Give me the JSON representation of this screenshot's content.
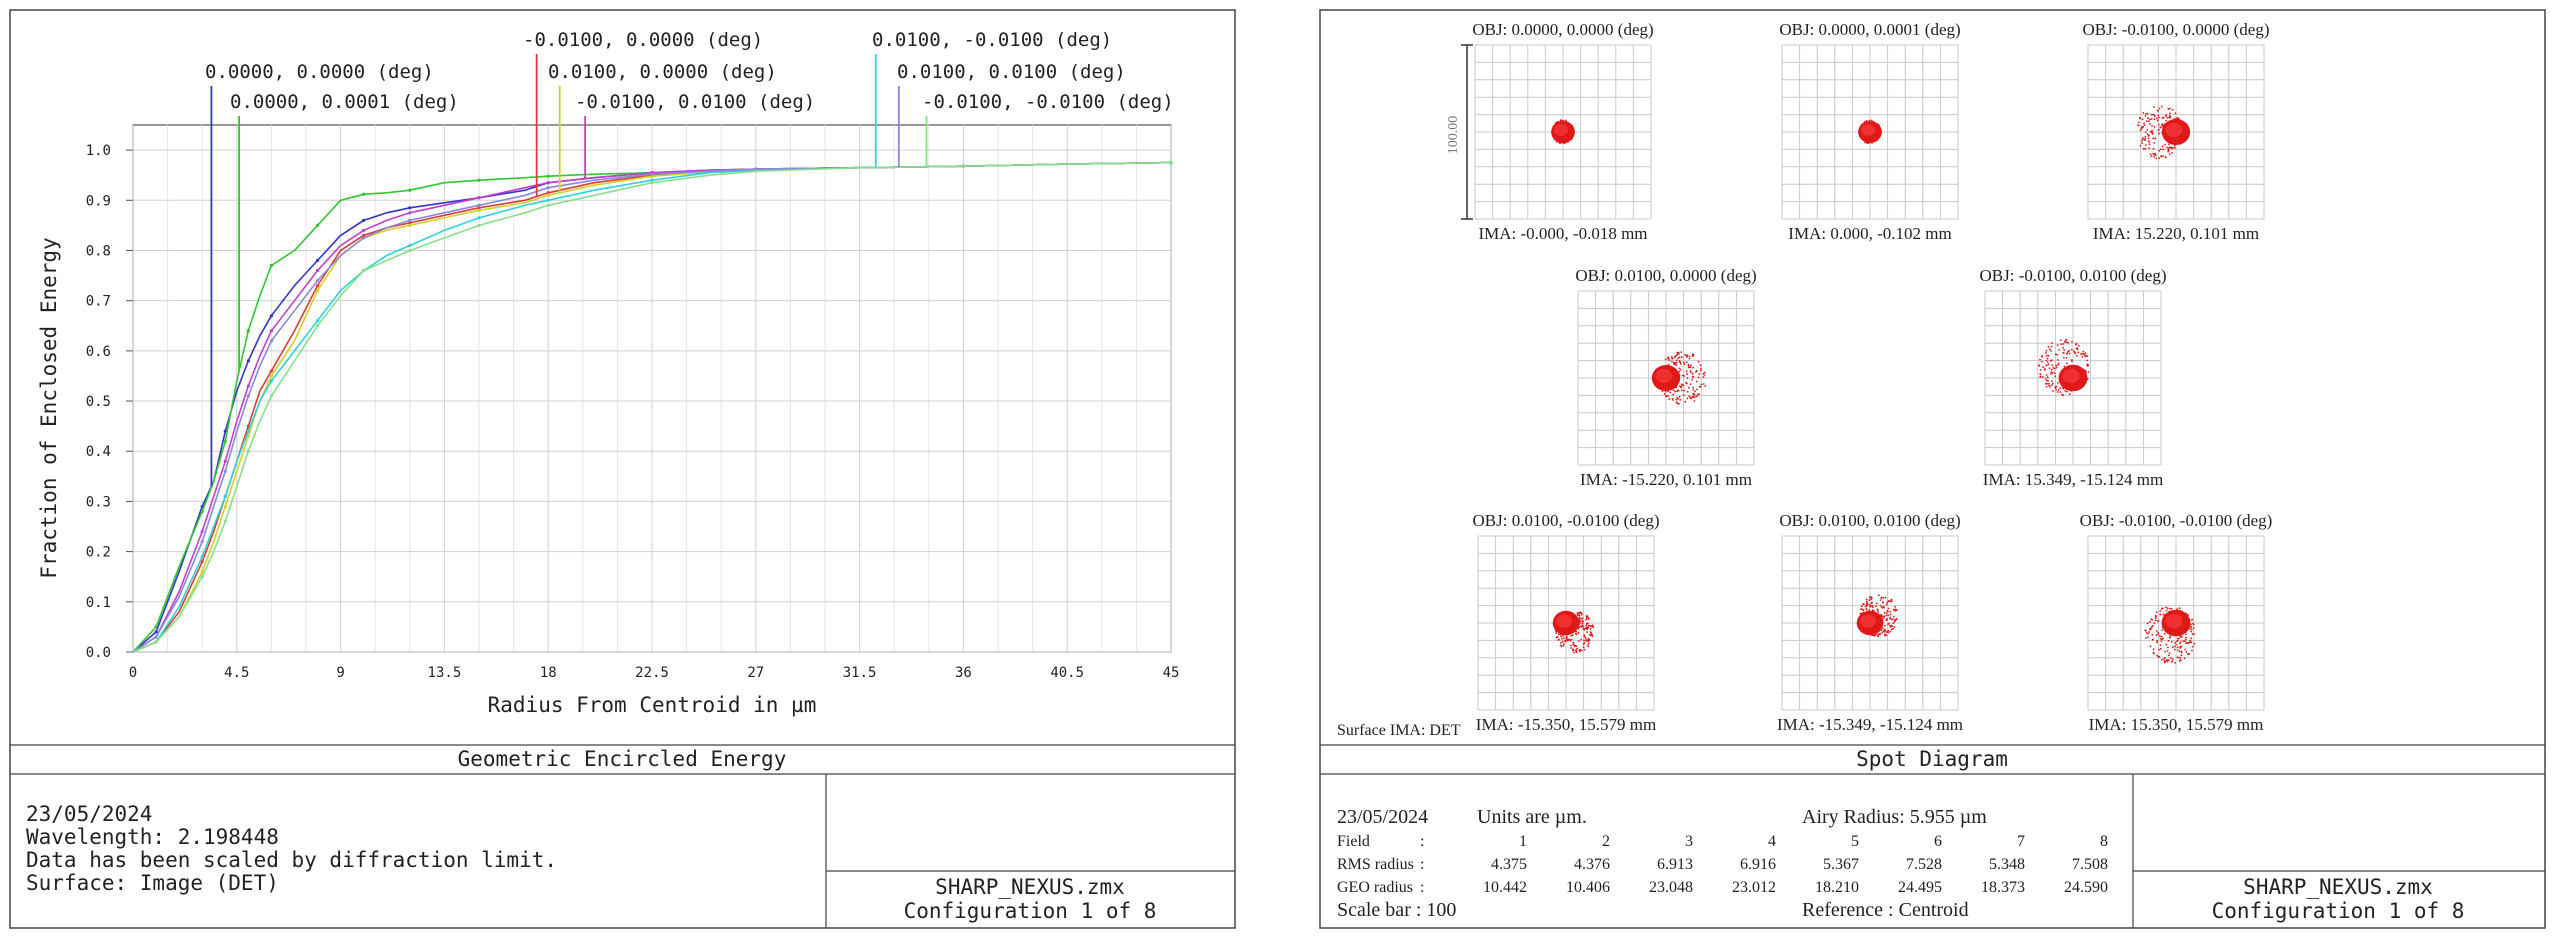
{
  "left_panel": {
    "title": "Geometric Encircled Energy",
    "info_lines": [
      "23/05/2024",
      "Wavelength: 2.198448",
      "Data has been scaled by diffraction limit.",
      "Surface: Image (DET)"
    ],
    "file_name": "SHARP_NEXUS.zmx",
    "configuration": "Configuration 1 of 8"
  },
  "right_panel": {
    "title": "Spot Diagram",
    "date": "23/05/2024",
    "units_text": "Units are µm.",
    "airy_text": "Airy Radius: 5.955 µm",
    "table": {
      "field_label": "Field",
      "rms_label": "RMS radius",
      "geo_label": "GEO radius",
      "fields": [
        "1",
        "2",
        "3",
        "4",
        "5",
        "6",
        "7",
        "8"
      ],
      "rms": [
        "4.375",
        "4.376",
        "6.913",
        "6.916",
        "5.367",
        "7.528",
        "5.348",
        "7.508"
      ],
      "geo": [
        "10.442",
        "10.406",
        "23.048",
        "23.012",
        "18.210",
        "24.495",
        "18.373",
        "24.590"
      ]
    },
    "scale_bar_text": "Scale bar  : 100",
    "reference_text": "Reference  : Centroid",
    "surface_text": "Surface IMA: DET",
    "scale_label": "100.00",
    "file_name": "SHARP_NEXUS.zmx",
    "configuration": "Configuration 1 of 8",
    "spots": [
      {
        "obj": "OBJ: 0.0000, 0.0000 (deg)",
        "ima": "IMA: -0.000, -0.018 mm",
        "geo": 10.442,
        "ox": 0,
        "oy": 0
      },
      {
        "obj": "OBJ: 0.0000, 0.0001 (deg)",
        "ima": "IMA: 0.000, -0.102 mm",
        "geo": 10.406,
        "ox": 0,
        "oy": 0
      },
      {
        "obj": "OBJ: -0.0100, 0.0000 (deg)",
        "ima": "IMA: 15.220, 0.101 mm",
        "geo": 23.048,
        "ox": -1,
        "oy": 0
      },
      {
        "obj": "OBJ: 0.0100, 0.0000 (deg)",
        "ima": "IMA: -15.220, 0.101 mm",
        "geo": 23.012,
        "ox": 1,
        "oy": 0
      },
      {
        "obj": "OBJ: -0.0100, 0.0100 (deg)",
        "ima": "IMA: 15.349, -15.124 mm",
        "geo": 24.495,
        "ox": -0.5,
        "oy": -0.6
      },
      {
        "obj": "OBJ: 0.0100, -0.0100 (deg)",
        "ima": "IMA: -15.350, 15.579 mm",
        "geo": 18.21,
        "ox": 0.6,
        "oy": 0.6
      },
      {
        "obj": "OBJ: 0.0100, 0.0100 (deg)",
        "ima": "IMA: -15.349, -15.124 mm",
        "geo": 18.373,
        "ox": 0.6,
        "oy": -0.5
      },
      {
        "obj": "OBJ: -0.0100, -0.0100 (deg)",
        "ima": "IMA: 15.350, 15.579 mm",
        "geo": 24.59,
        "ox": -0.3,
        "oy": 0.7
      }
    ]
  },
  "chart_data": {
    "type": "line",
    "title": "",
    "xlabel": "Radius From Centroid in µm",
    "ylabel": "Fraction of Enclosed Energy",
    "xlim": [
      0,
      45
    ],
    "ylim": [
      0,
      1.05
    ],
    "xticks": [
      0,
      4.5,
      9,
      13.5,
      18,
      22.5,
      27,
      31.5,
      36,
      40.5,
      45
    ],
    "xtick_labels": [
      "0",
      "4.5",
      "9",
      "13.5",
      "18",
      "22.5",
      "27",
      "31.5",
      "36",
      "40.5",
      "45"
    ],
    "yticks": [
      0,
      0.1,
      0.2,
      0.3,
      0.4,
      0.5,
      0.6,
      0.7,
      0.8,
      0.9,
      1.0
    ],
    "ytick_labels": [
      "0.0",
      "0.1",
      "0.2",
      "0.3",
      "0.4",
      "0.5",
      "0.6",
      "0.7",
      "0.8",
      "0.9",
      "1.0"
    ],
    "grid": true,
    "x": [
      0,
      1,
      2,
      3,
      3.5,
      4,
      4.5,
      5,
      5.5,
      6,
      7,
      8,
      9,
      10,
      11,
      12,
      13.5,
      15,
      17,
      18,
      20,
      22.5,
      25,
      27,
      31.5,
      36,
      40.5,
      45
    ],
    "series": [
      {
        "name": "0.0000, 0.0000 (deg)",
        "color": "#3535c8",
        "marker_x": 3.4,
        "values": [
          0,
          0.04,
          0.16,
          0.29,
          0.34,
          0.44,
          0.52,
          0.58,
          0.63,
          0.67,
          0.73,
          0.78,
          0.83,
          0.86,
          0.875,
          0.885,
          0.895,
          0.905,
          0.92,
          0.935,
          0.945,
          0.955,
          0.96,
          0.962,
          0.965,
          0.968,
          0.972,
          0.975
        ]
      },
      {
        "name": "0.0000, 0.0001 (deg)",
        "color": "#2ec82e",
        "marker_x": 4.6,
        "values": [
          0,
          0.05,
          0.17,
          0.28,
          0.34,
          0.42,
          0.54,
          0.64,
          0.71,
          0.77,
          0.8,
          0.85,
          0.9,
          0.912,
          0.915,
          0.92,
          0.935,
          0.94,
          0.945,
          0.948,
          0.952,
          0.955,
          0.96,
          0.962,
          0.965,
          0.968,
          0.972,
          0.975
        ]
      },
      {
        "name": "-0.0100, 0.0000 (deg)",
        "color": "#e03a3a",
        "marker_x": 17.5,
        "values": [
          0,
          0.02,
          0.08,
          0.18,
          0.24,
          0.31,
          0.38,
          0.45,
          0.52,
          0.56,
          0.64,
          0.73,
          0.8,
          0.83,
          0.845,
          0.855,
          0.87,
          0.885,
          0.9,
          0.915,
          0.935,
          0.95,
          0.958,
          0.962,
          0.965,
          0.968,
          0.972,
          0.975
        ]
      },
      {
        "name": "0.0100, 0.0000 (deg)",
        "color": "#d2d226",
        "marker_x": 18.5,
        "values": [
          0,
          0.02,
          0.07,
          0.16,
          0.22,
          0.29,
          0.36,
          0.43,
          0.5,
          0.55,
          0.62,
          0.72,
          0.79,
          0.825,
          0.84,
          0.85,
          0.865,
          0.88,
          0.895,
          0.91,
          0.93,
          0.948,
          0.956,
          0.96,
          0.965,
          0.968,
          0.972,
          0.975
        ]
      },
      {
        "name": "-0.0100, 0.0100 (deg)",
        "color": "#c040c8",
        "marker_x": 19.6,
        "values": [
          0,
          0.03,
          0.12,
          0.24,
          0.31,
          0.38,
          0.46,
          0.53,
          0.59,
          0.64,
          0.7,
          0.76,
          0.81,
          0.84,
          0.86,
          0.875,
          0.89,
          0.905,
          0.925,
          0.935,
          0.945,
          0.955,
          0.96,
          0.962,
          0.965,
          0.968,
          0.972,
          0.975
        ]
      },
      {
        "name": "0.0100, -0.0100 (deg)",
        "color": "#2ed2e0",
        "marker_x": 32.2,
        "values": [
          0,
          0.02,
          0.09,
          0.19,
          0.25,
          0.31,
          0.38,
          0.44,
          0.5,
          0.54,
          0.6,
          0.66,
          0.72,
          0.76,
          0.79,
          0.81,
          0.84,
          0.865,
          0.89,
          0.9,
          0.92,
          0.94,
          0.955,
          0.96,
          0.965,
          0.968,
          0.972,
          0.975
        ]
      },
      {
        "name": "0.0100, 0.0100 (deg)",
        "color": "#8888dd",
        "marker_x": 33.2,
        "values": [
          0,
          0.03,
          0.11,
          0.22,
          0.29,
          0.36,
          0.44,
          0.51,
          0.57,
          0.62,
          0.68,
          0.74,
          0.79,
          0.825,
          0.845,
          0.86,
          0.875,
          0.89,
          0.91,
          0.925,
          0.94,
          0.952,
          0.958,
          0.962,
          0.965,
          0.968,
          0.972,
          0.975
        ]
      },
      {
        "name": "-0.0100, -0.0100 (deg)",
        "color": "#88e088",
        "marker_x": 34.4,
        "values": [
          0,
          0.02,
          0.07,
          0.15,
          0.2,
          0.26,
          0.33,
          0.4,
          0.46,
          0.51,
          0.58,
          0.65,
          0.71,
          0.76,
          0.78,
          0.8,
          0.825,
          0.85,
          0.875,
          0.89,
          0.91,
          0.935,
          0.95,
          0.958,
          0.965,
          0.968,
          0.972,
          0.975
        ]
      }
    ]
  }
}
